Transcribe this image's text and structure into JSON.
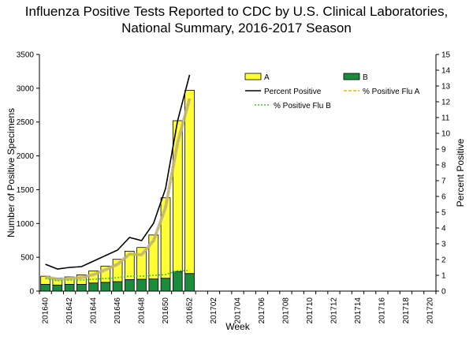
{
  "chart_data": {
    "type": "bar+line",
    "title_line1": "Influenza Positive Tests Reported to CDC by U.S. Clinical Laboratories,",
    "title_line2": "National Summary, 2016-2017 Season",
    "xlabel": "Week",
    "ylabel_left": "Number of Positive Specimens",
    "ylabel_right": "Percent Positive",
    "ylim_left": [
      0,
      3500
    ],
    "ylim_right": [
      0,
      15
    ],
    "yticks_left": [
      0,
      500,
      1000,
      1500,
      2000,
      2500,
      3000,
      3500
    ],
    "yticks_right": [
      0,
      1,
      2,
      3,
      4,
      5,
      6,
      7,
      8,
      9,
      10,
      11,
      12,
      13,
      14,
      15
    ],
    "weeks": [
      "201640",
      "201641",
      "201642",
      "201643",
      "201644",
      "201645",
      "201646",
      "201647",
      "201648",
      "201649",
      "201650",
      "201651",
      "201652",
      "201701",
      "201702",
      "201703",
      "201704",
      "201705",
      "201706",
      "201707",
      "201708",
      "201709",
      "201710",
      "201711",
      "201712",
      "201713",
      "201714",
      "201715",
      "201716",
      "201717",
      "201718",
      "201719",
      "201720"
    ],
    "xtick_labels": [
      "201640",
      "201642",
      "201644",
      "201646",
      "201648",
      "201650",
      "201652",
      "201702",
      "201704",
      "201706",
      "201708",
      "201710",
      "201712",
      "201714",
      "201716",
      "201718",
      "201720"
    ],
    "series": [
      {
        "name": "A",
        "type": "bar",
        "color": "#ffff33",
        "values": [
          120,
          100,
          110,
          140,
          180,
          240,
          330,
          420,
          470,
          650,
          1190,
          2230,
          2710
        ]
      },
      {
        "name": "B",
        "type": "bar",
        "color": "#1a8c3c",
        "values": [
          100,
          90,
          100,
          100,
          120,
          130,
          140,
          170,
          175,
          180,
          190,
          290,
          260
        ]
      },
      {
        "name": "Percent Positive",
        "type": "line",
        "color": "#000000",
        "values": [
          1.7,
          1.4,
          1.5,
          1.55,
          1.9,
          2.25,
          2.6,
          3.4,
          3.2,
          4.3,
          6.5,
          10.8,
          13.7
        ]
      },
      {
        "name": "% Positive Flu A",
        "type": "line",
        "color": "#e6b800",
        "values": [
          0.9,
          0.75,
          0.8,
          0.85,
          1.05,
          1.35,
          1.7,
          2.35,
          2.3,
          3.2,
          5.3,
          9.4,
          12.2
        ]
      },
      {
        "name": "% Positive Flu B",
        "type": "line",
        "color": "#33cc33",
        "values": [
          0.8,
          0.65,
          0.7,
          0.7,
          0.75,
          0.8,
          0.85,
          0.95,
          0.95,
          1.0,
          1.05,
          1.3,
          1.3
        ]
      }
    ],
    "legend": {
      "a": "A",
      "b": "B",
      "pct": "Percent Positive",
      "pct_a": "% Positive Flu A",
      "pct_b": "% Positive Flu B"
    }
  }
}
